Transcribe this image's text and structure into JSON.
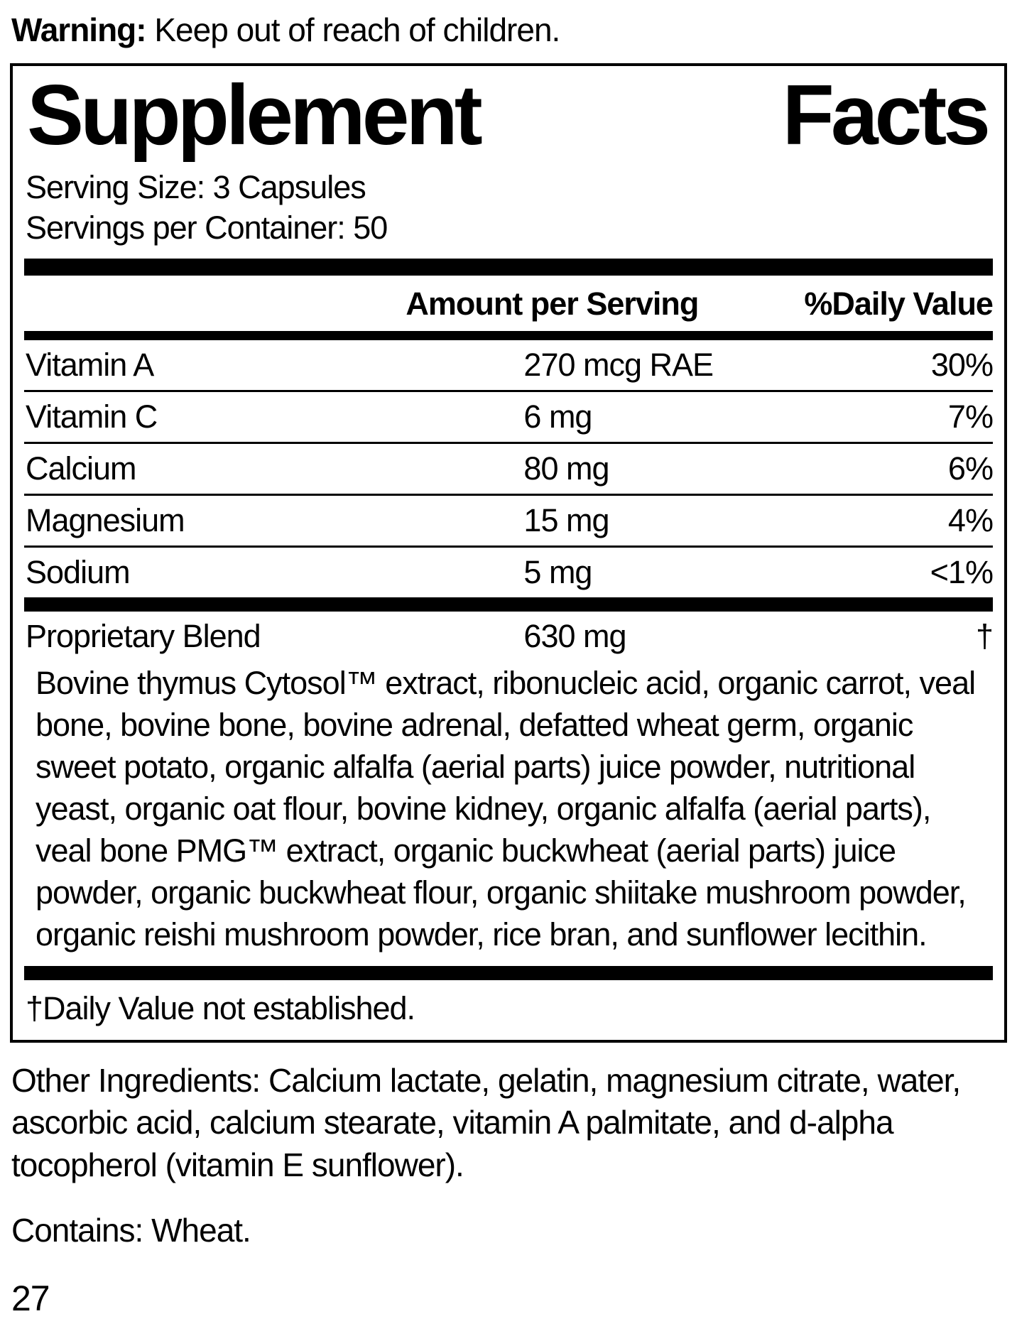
{
  "warning": {
    "label": "Warning:",
    "text": " Keep out of reach of children."
  },
  "panel": {
    "title_word1": "Supplement",
    "title_word2": "Facts",
    "serving_size": "Serving Size: 3 Capsules",
    "servings_per_container": "Servings per Container: 50",
    "columns": {
      "amount": "Amount per Serving",
      "daily_value": "%Daily Value"
    },
    "rows": [
      {
        "name": "Vitamin A",
        "amount": "270 mcg RAE",
        "dv": "30%"
      },
      {
        "name": "Vitamin C",
        "amount": "6 mg",
        "dv": "7%"
      },
      {
        "name": "Calcium",
        "amount": "80 mg",
        "dv": "6%"
      },
      {
        "name": "Magnesium",
        "amount": "15 mg",
        "dv": "4%"
      },
      {
        "name": "Sodium",
        "amount": "5 mg",
        "dv": "<1%"
      }
    ],
    "blend": {
      "name": "Proprietary Blend",
      "amount": "630 mg",
      "dv": "†",
      "description": "Bovine thymus Cytosol™ extract, ribonucleic acid, organic carrot, veal bone, bovine bone, bovine adrenal, defatted wheat germ, organic sweet potato, organic alfalfa (aerial parts) juice powder, nutritional yeast, organic oat flour, bovine kidney, organic alfalfa (aerial parts), veal bone PMG™ extract, organic buckwheat (aerial parts) juice powder, organic buckwheat flour, organic shiitake mushroom powder, organic reishi mushroom powder, rice bran, and sunflower lecithin."
    },
    "footnote": "†Daily Value not established."
  },
  "other_ingredients": "Other Ingredients: Calcium lactate, gelatin, magnesium citrate, water, ascorbic acid, calcium stearate, vitamin A palmitate, and d-alpha tocopherol (vitamin E sunflower).",
  "contains": "Contains: Wheat.",
  "page_number": "27",
  "colors": {
    "ink": "#000000",
    "background": "#ffffff"
  }
}
